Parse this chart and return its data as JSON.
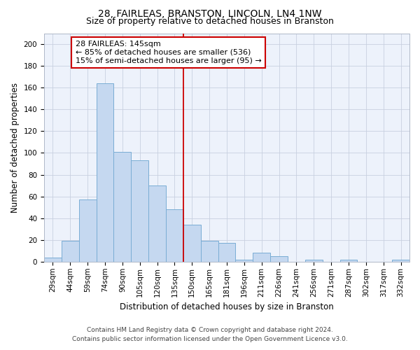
{
  "title": "28, FAIRLEAS, BRANSTON, LINCOLN, LN4 1NW",
  "subtitle": "Size of property relative to detached houses in Branston",
  "xlabel": "Distribution of detached houses by size in Branston",
  "ylabel": "Number of detached properties",
  "categories": [
    "29sqm",
    "44sqm",
    "59sqm",
    "74sqm",
    "90sqm",
    "105sqm",
    "120sqm",
    "135sqm",
    "150sqm",
    "165sqm",
    "181sqm",
    "196sqm",
    "211sqm",
    "226sqm",
    "241sqm",
    "256sqm",
    "271sqm",
    "287sqm",
    "302sqm",
    "317sqm",
    "332sqm"
  ],
  "values": [
    4,
    19,
    57,
    164,
    101,
    93,
    70,
    48,
    34,
    19,
    17,
    2,
    8,
    5,
    0,
    2,
    0,
    2,
    0,
    0,
    2
  ],
  "bar_color": "#c5d8f0",
  "bar_edge_color": "#7aadd4",
  "vline_x_index": 7.5,
  "vline_color": "#cc0000",
  "annotation_text": "28 FAIRLEAS: 145sqm\n← 85% of detached houses are smaller (536)\n15% of semi-detached houses are larger (95) →",
  "annotation_box_color": "#cc0000",
  "ylim": [
    0,
    210
  ],
  "yticks": [
    0,
    20,
    40,
    60,
    80,
    100,
    120,
    140,
    160,
    180,
    200
  ],
  "footer_line1": "Contains HM Land Registry data © Crown copyright and database right 2024.",
  "footer_line2": "Contains public sector information licensed under the Open Government Licence v3.0.",
  "background_color": "#edf2fb",
  "grid_color": "#c8d0e0",
  "title_fontsize": 10,
  "subtitle_fontsize": 9,
  "axis_label_fontsize": 8.5,
  "tick_fontsize": 7.5,
  "footer_fontsize": 6.5,
  "annotation_fontsize": 8,
  "ylabel_fontsize": 8.5
}
